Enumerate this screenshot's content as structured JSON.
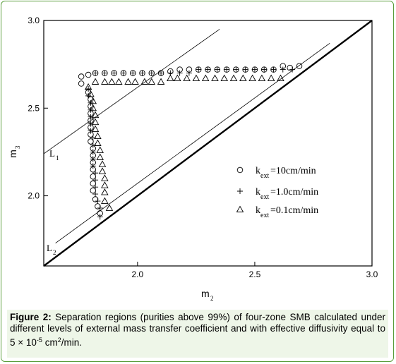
{
  "chart_data": {
    "type": "scatter",
    "xlabel": "m",
    "xlabel_sub": "2",
    "ylabel": "m",
    "ylabel_sub": "3",
    "xlim": [
      1.6,
      3.0
    ],
    "ylim": [
      1.6,
      3.0
    ],
    "x_ticks": [
      "2.0",
      "2.5",
      "3.0"
    ],
    "y_ticks": [
      "2.0",
      "2.5",
      "3.0"
    ],
    "legend_position": "center-right",
    "series": [
      {
        "name": "k_ext=10cm/min",
        "marker": "circle",
        "points": [
          [
            1.76,
            2.68
          ],
          [
            1.76,
            2.64
          ],
          [
            1.79,
            2.59
          ],
          [
            1.8,
            2.55
          ],
          [
            1.8,
            2.51
          ],
          [
            1.8,
            2.47
          ],
          [
            1.8,
            2.43
          ],
          [
            1.8,
            2.39
          ],
          [
            1.8,
            2.35
          ],
          [
            1.8,
            2.31
          ],
          [
            1.81,
            2.27
          ],
          [
            1.81,
            2.23
          ],
          [
            1.81,
            2.19
          ],
          [
            1.81,
            2.15
          ],
          [
            1.81,
            2.11
          ],
          [
            1.81,
            2.07
          ],
          [
            1.81,
            2.03
          ],
          [
            1.82,
            1.98
          ],
          [
            1.83,
            1.94
          ],
          [
            1.84,
            1.9
          ],
          [
            1.79,
            2.69
          ],
          [
            1.82,
            2.7
          ],
          [
            1.86,
            2.7
          ],
          [
            1.9,
            2.7
          ],
          [
            1.94,
            2.7
          ],
          [
            1.98,
            2.7
          ],
          [
            2.02,
            2.7
          ],
          [
            2.06,
            2.7
          ],
          [
            2.1,
            2.7
          ],
          [
            2.14,
            2.71
          ],
          [
            2.18,
            2.72
          ],
          [
            2.22,
            2.72
          ],
          [
            2.26,
            2.72
          ],
          [
            2.3,
            2.72
          ],
          [
            2.34,
            2.72
          ],
          [
            2.38,
            2.72
          ],
          [
            2.42,
            2.72
          ],
          [
            2.46,
            2.72
          ],
          [
            2.5,
            2.72
          ],
          [
            2.54,
            2.72
          ],
          [
            2.58,
            2.72
          ],
          [
            2.62,
            2.74
          ],
          [
            2.65,
            2.73
          ],
          [
            2.69,
            2.74
          ]
        ]
      },
      {
        "name": "k_ext=1.0cm/min",
        "marker": "plus",
        "points": [
          [
            1.79,
            2.61
          ],
          [
            1.79,
            2.57
          ],
          [
            1.8,
            2.53
          ],
          [
            1.8,
            2.49
          ],
          [
            1.8,
            2.45
          ],
          [
            1.8,
            2.41
          ],
          [
            1.8,
            2.37
          ],
          [
            1.81,
            2.33
          ],
          [
            1.81,
            2.29
          ],
          [
            1.81,
            2.25
          ],
          [
            1.81,
            2.21
          ],
          [
            1.81,
            2.17
          ],
          [
            1.82,
            2.13
          ],
          [
            1.82,
            2.09
          ],
          [
            1.82,
            2.05
          ],
          [
            1.82,
            2.01
          ],
          [
            1.83,
            1.97
          ],
          [
            1.84,
            1.93
          ],
          [
            1.84,
            1.88
          ],
          [
            1.82,
            2.7
          ],
          [
            1.86,
            2.7
          ],
          [
            1.9,
            2.7
          ],
          [
            1.94,
            2.7
          ],
          [
            1.98,
            2.7
          ],
          [
            2.02,
            2.7
          ],
          [
            2.06,
            2.7
          ],
          [
            2.1,
            2.7
          ],
          [
            2.14,
            2.7
          ],
          [
            2.18,
            2.7
          ],
          [
            2.22,
            2.7
          ],
          [
            2.26,
            2.72
          ],
          [
            2.3,
            2.72
          ],
          [
            2.34,
            2.72
          ],
          [
            2.38,
            2.72
          ],
          [
            2.42,
            2.72
          ],
          [
            2.46,
            2.72
          ],
          [
            2.5,
            2.72
          ],
          [
            2.54,
            2.72
          ],
          [
            2.58,
            2.72
          ],
          [
            2.62,
            2.72
          ],
          [
            2.66,
            2.72
          ]
        ]
      },
      {
        "name": "k_ext=0.1cm/min",
        "marker": "triangle",
        "points": [
          [
            1.79,
            2.62
          ],
          [
            1.8,
            2.58
          ],
          [
            1.81,
            2.54
          ],
          [
            1.81,
            2.5
          ],
          [
            1.82,
            2.46
          ],
          [
            1.82,
            2.42
          ],
          [
            1.82,
            2.38
          ],
          [
            1.83,
            2.34
          ],
          [
            1.83,
            2.3
          ],
          [
            1.84,
            2.26
          ],
          [
            1.84,
            2.22
          ],
          [
            1.85,
            2.18
          ],
          [
            1.85,
            2.14
          ],
          [
            1.86,
            2.1
          ],
          [
            1.86,
            2.06
          ],
          [
            1.86,
            2.02
          ],
          [
            1.86,
            1.97
          ],
          [
            1.88,
            1.93
          ],
          [
            1.82,
            2.65
          ],
          [
            1.86,
            2.65
          ],
          [
            1.89,
            2.65
          ],
          [
            1.92,
            2.65
          ],
          [
            1.96,
            2.65
          ],
          [
            1.99,
            2.65
          ],
          [
            2.03,
            2.65
          ],
          [
            2.06,
            2.65
          ],
          [
            2.1,
            2.65
          ],
          [
            2.14,
            2.67
          ],
          [
            2.17,
            2.67
          ],
          [
            2.21,
            2.67
          ],
          [
            2.25,
            2.67
          ],
          [
            2.29,
            2.67
          ],
          [
            2.33,
            2.67
          ],
          [
            2.37,
            2.67
          ],
          [
            2.41,
            2.67
          ],
          [
            2.45,
            2.67
          ],
          [
            2.49,
            2.67
          ],
          [
            2.53,
            2.67
          ],
          [
            2.57,
            2.67
          ],
          [
            2.61,
            2.67
          ]
        ]
      }
    ],
    "diagonal": {
      "from": [
        1.6,
        1.6
      ],
      "to": [
        3.0,
        3.0
      ]
    },
    "lines": [
      {
        "label": "L",
        "label_sub": "1",
        "from": [
          1.6,
          2.24
        ],
        "to": [
          2.35,
          2.95
        ]
      },
      {
        "label": "L",
        "label_sub": "2",
        "from": [
          1.65,
          1.73
        ],
        "to": [
          2.82,
          2.87
        ]
      }
    ]
  },
  "legend": {
    "items": [
      {
        "prefix": "k",
        "sub": "ext",
        "suffix": "=10cm/min"
      },
      {
        "prefix": "k",
        "sub": "ext",
        "suffix": "=1.0cm/min"
      },
      {
        "prefix": "k",
        "sub": "ext",
        "suffix": "=0.1cm/min"
      }
    ]
  },
  "caption": {
    "label": "Figure 2:",
    "text_before": " Separation regions (purities above 99%) of four-zone SMB calculated under different levels of external mass transfer coefficient and with effective diffusivity equal to 5 × 10",
    "exponent": "-5",
    "text_mid": " cm",
    "unit_exponent": "2",
    "text_after": "/min."
  }
}
